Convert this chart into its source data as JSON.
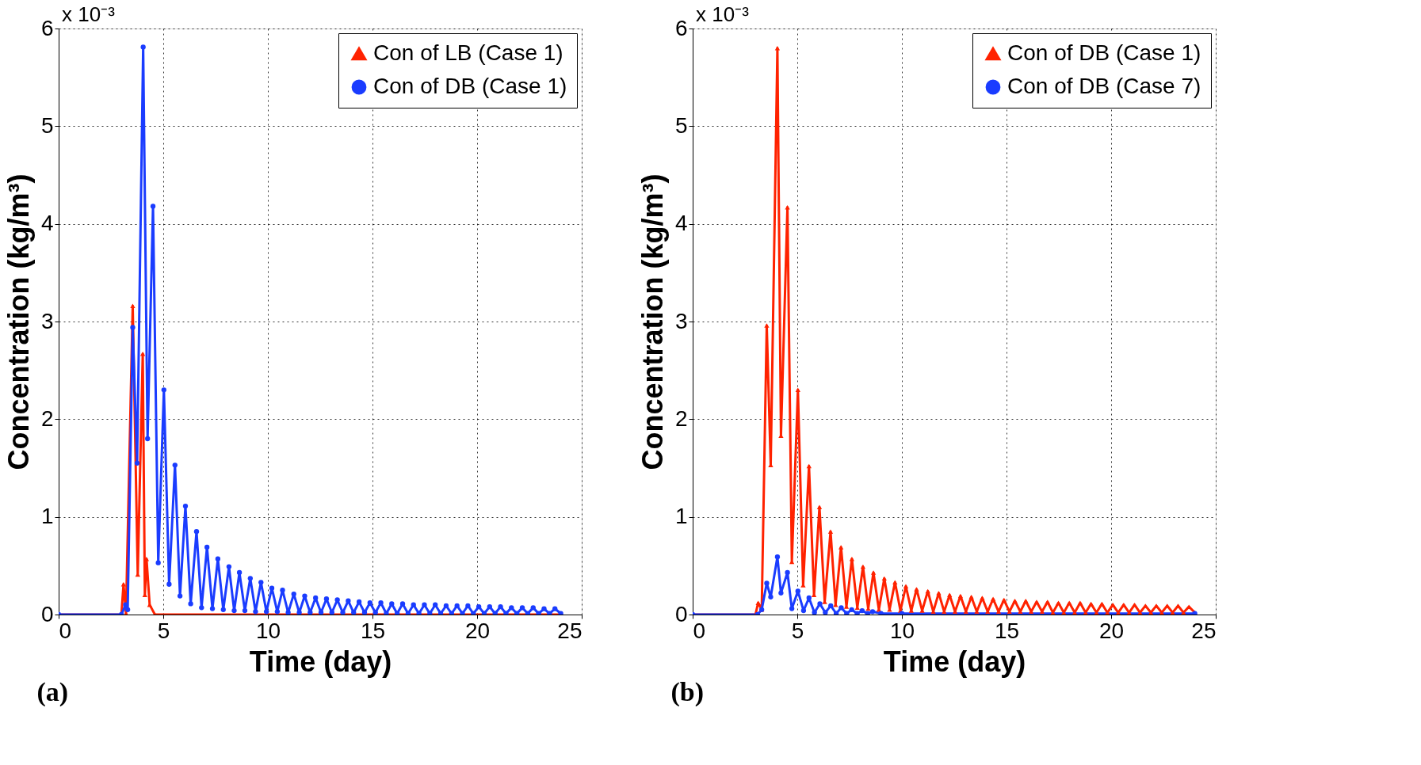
{
  "chart_data": [
    {
      "type": "line",
      "xlabel": "Time (day)",
      "ylabel": "Concentration (kg/m³)",
      "annotations": [
        "x 10⁻³",
        "(a)"
      ],
      "xlim": [
        0,
        25
      ],
      "xticks": [
        0,
        5,
        10,
        15,
        20,
        25
      ],
      "ylim": [
        0,
        6
      ],
      "yticks": [
        0,
        1,
        2,
        3,
        4,
        5,
        6
      ],
      "grid": true,
      "legend": "top right",
      "series": [
        {
          "name": "Con of LB (Case 1)",
          "color": "#ff2200",
          "marker": "triangle",
          "x": [
            0,
            3.0,
            3.1,
            3.22,
            3.54,
            3.78,
            4.02,
            4.12,
            4.2,
            4.35,
            4.6,
            24.0
          ],
          "values": [
            0,
            0,
            0.31,
            0.01,
            3.16,
            0.41,
            2.67,
            0.2,
            0.57,
            0.1,
            0,
            0
          ]
        },
        {
          "name": "Con of DB (Case 1)",
          "color": "#1a3cff",
          "marker": "circle",
          "x": [
            0,
            3.0,
            3.2,
            3.3,
            3.54,
            3.75,
            4.04,
            4.25,
            4.51,
            4.76,
            5.03,
            5.28,
            5.56,
            5.8,
            6.06,
            6.31,
            6.59,
            6.83,
            7.09,
            7.35,
            7.61,
            7.87,
            8.14,
            8.39,
            8.64,
            8.9,
            9.16,
            9.41,
            9.67,
            9.93,
            10.19,
            10.45,
            10.7,
            10.97,
            11.24,
            11.5,
            11.76,
            12.02,
            12.28,
            12.54,
            12.8,
            13.06,
            13.32,
            13.58,
            13.84,
            14.1,
            14.36,
            14.62,
            14.88,
            15.14,
            15.4,
            15.66,
            15.92,
            16.18,
            16.44,
            16.7,
            16.96,
            17.22,
            17.48,
            17.74,
            18.0,
            18.26,
            18.52,
            18.78,
            19.04,
            19.3,
            19.56,
            19.82,
            20.08,
            20.34,
            20.6,
            20.86,
            21.12,
            21.38,
            21.64,
            21.9,
            22.16,
            22.42,
            22.68,
            22.94,
            23.2,
            23.46,
            23.72,
            24.0
          ],
          "values": [
            0,
            0,
            0.1,
            0.05,
            2.94,
            1.55,
            5.81,
            1.8,
            4.18,
            0.53,
            2.3,
            0.31,
            1.53,
            0.19,
            1.11,
            0.11,
            0.85,
            0.07,
            0.69,
            0.06,
            0.57,
            0.05,
            0.49,
            0.04,
            0.43,
            0.04,
            0.37,
            0.03,
            0.33,
            0.03,
            0.27,
            0.03,
            0.25,
            0.02,
            0.21,
            0.02,
            0.19,
            0.02,
            0.17,
            0.02,
            0.16,
            0.02,
            0.15,
            0.02,
            0.14,
            0.02,
            0.13,
            0.02,
            0.12,
            0.02,
            0.12,
            0.01,
            0.11,
            0.01,
            0.11,
            0.01,
            0.1,
            0.01,
            0.1,
            0.01,
            0.1,
            0.01,
            0.09,
            0.01,
            0.09,
            0.01,
            0.09,
            0.01,
            0.08,
            0.01,
            0.08,
            0.01,
            0.08,
            0.01,
            0.07,
            0.01,
            0.07,
            0.01,
            0.07,
            0.01,
            0.06,
            0.01,
            0.06,
            0.01
          ]
        }
      ]
    },
    {
      "type": "line",
      "xlabel": "Time (day)",
      "ylabel": "Concentration (kg/m³)",
      "annotations": [
        "x 10⁻³",
        "(b)"
      ],
      "xlim": [
        0,
        25
      ],
      "xticks": [
        0,
        5,
        10,
        15,
        20,
        25
      ],
      "ylim": [
        0,
        6
      ],
      "yticks": [
        0,
        1,
        2,
        3,
        4,
        5,
        6
      ],
      "grid": true,
      "legend": "top right",
      "series": [
        {
          "name": "Con of DB (Case 1)",
          "color": "#ff2200",
          "marker": "triangle",
          "x": [
            0,
            3.0,
            3.13,
            3.3,
            3.54,
            3.73,
            4.05,
            4.22,
            4.53,
            4.74,
            5.03,
            5.28,
            5.56,
            5.8,
            6.06,
            6.31,
            6.59,
            6.83,
            7.09,
            7.35,
            7.61,
            7.87,
            8.14,
            8.39,
            8.64,
            8.9,
            9.16,
            9.41,
            9.67,
            9.93,
            10.19,
            10.45,
            10.7,
            10.97,
            11.24,
            11.5,
            11.76,
            12.02,
            12.28,
            12.54,
            12.8,
            13.06,
            13.32,
            13.58,
            13.84,
            14.1,
            14.36,
            14.62,
            14.88,
            15.14,
            15.4,
            15.66,
            15.92,
            16.18,
            16.44,
            16.7,
            16.96,
            17.22,
            17.48,
            17.74,
            18.0,
            18.26,
            18.52,
            18.78,
            19.04,
            19.3,
            19.56,
            19.82,
            20.08,
            20.34,
            20.6,
            20.86,
            21.12,
            21.38,
            21.64,
            21.9,
            22.16,
            22.42,
            22.68,
            22.94,
            23.2,
            23.46,
            23.72,
            24.0
          ],
          "values": [
            0,
            0,
            0.12,
            0.05,
            2.96,
            1.53,
            5.8,
            1.83,
            4.17,
            0.54,
            2.3,
            0.3,
            1.52,
            0.2,
            1.1,
            0.13,
            0.85,
            0.1,
            0.69,
            0.08,
            0.57,
            0.07,
            0.49,
            0.06,
            0.43,
            0.05,
            0.37,
            0.05,
            0.33,
            0.04,
            0.29,
            0.04,
            0.26,
            0.04,
            0.24,
            0.03,
            0.22,
            0.03,
            0.2,
            0.03,
            0.19,
            0.03,
            0.18,
            0.03,
            0.17,
            0.03,
            0.16,
            0.03,
            0.15,
            0.03,
            0.14,
            0.03,
            0.14,
            0.03,
            0.13,
            0.03,
            0.13,
            0.02,
            0.12,
            0.02,
            0.12,
            0.02,
            0.12,
            0.02,
            0.11,
            0.02,
            0.11,
            0.02,
            0.1,
            0.02,
            0.1,
            0.02,
            0.1,
            0.02,
            0.09,
            0.02,
            0.09,
            0.02,
            0.09,
            0.02,
            0.09,
            0.02,
            0.08,
            0.02
          ]
        },
        {
          "name": "Con of DB (Case 7)",
          "color": "#1a3cff",
          "marker": "circle",
          "x": [
            0,
            3.1,
            3.3,
            3.54,
            3.73,
            4.05,
            4.22,
            4.53,
            4.74,
            5.03,
            5.3,
            5.56,
            5.82,
            6.08,
            6.34,
            6.6,
            6.86,
            7.1,
            7.36,
            7.6,
            7.86,
            8.1,
            8.36,
            8.6,
            9.0,
            10.0,
            24.0
          ],
          "values": [
            0,
            0,
            0.05,
            0.32,
            0.18,
            0.59,
            0.22,
            0.43,
            0.06,
            0.24,
            0.04,
            0.17,
            0.02,
            0.11,
            0.02,
            0.09,
            0.01,
            0.07,
            0.01,
            0.05,
            0.01,
            0.04,
            0.01,
            0.03,
            0.01,
            0.01,
            0.01
          ]
        }
      ]
    }
  ]
}
